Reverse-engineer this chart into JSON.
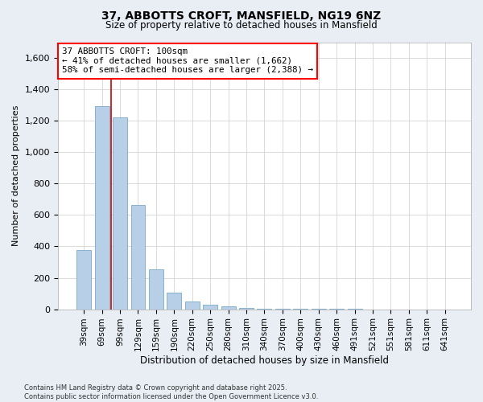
{
  "title_line1": "37, ABBOTTS CROFT, MANSFIELD, NG19 6NZ",
  "title_line2": "Size of property relative to detached houses in Mansfield",
  "xlabel": "Distribution of detached houses by size in Mansfield",
  "ylabel": "Number of detached properties",
  "categories": [
    "39sqm",
    "69sqm",
    "99sqm",
    "129sqm",
    "159sqm",
    "190sqm",
    "220sqm",
    "250sqm",
    "280sqm",
    "310sqm",
    "340sqm",
    "370sqm",
    "400sqm",
    "430sqm",
    "460sqm",
    "491sqm",
    "521sqm",
    "551sqm",
    "581sqm",
    "611sqm",
    "641sqm"
  ],
  "values": [
    375,
    1295,
    1220,
    665,
    255,
    105,
    48,
    30,
    18,
    8,
    4,
    3,
    2,
    2,
    1,
    1,
    0,
    0,
    0,
    0,
    0
  ],
  "bar_color": "#b8cfe8",
  "bar_edge_color": "#7aaac8",
  "highlight_index": 2,
  "annotation_text_line1": "37 ABBOTTS CROFT: 100sqm",
  "annotation_text_line2": "← 41% of detached houses are smaller (1,662)",
  "annotation_text_line3": "58% of semi-detached houses are larger (2,388) →",
  "vline_color": "#cc0000",
  "ylim": [
    0,
    1700
  ],
  "yticks": [
    0,
    200,
    400,
    600,
    800,
    1000,
    1200,
    1400,
    1600
  ],
  "footer_line1": "Contains HM Land Registry data © Crown copyright and database right 2025.",
  "footer_line2": "Contains public sector information licensed under the Open Government Licence v3.0.",
  "bg_color": "#e8eef4",
  "plot_bg_color": "#ffffff"
}
